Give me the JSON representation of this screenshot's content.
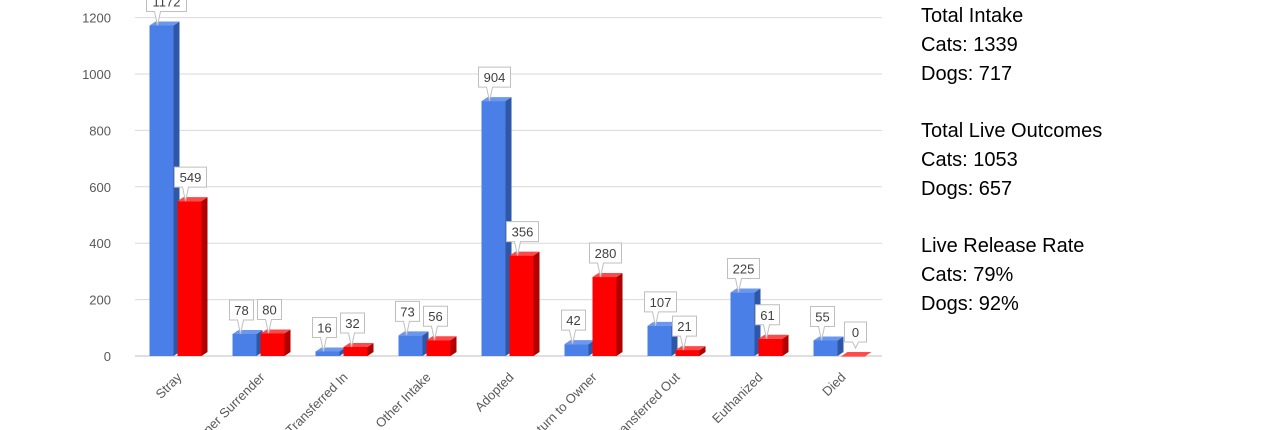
{
  "chart_data": {
    "type": "bar",
    "categories": [
      "Stray",
      "Owner Surrender",
      "Transferred In",
      "Other Intake",
      "Adopted",
      "Return to Owner",
      "Transferred Out",
      "Euthanized",
      "Died"
    ],
    "series": [
      {
        "values": [
          1172,
          78,
          16,
          73,
          904,
          42,
          107,
          225,
          55
        ]
      },
      {
        "values": [
          549,
          80,
          32,
          56,
          356,
          280,
          21,
          61,
          0
        ]
      }
    ],
    "yticks": [
      0,
      200,
      400,
      600,
      800,
      1000,
      1200
    ],
    "ylim": [
      0,
      1200
    ],
    "grid": true,
    "legend": "none",
    "colors": {
      "series0": "#4a7fe8",
      "series0_side": "#2e57a8",
      "series0_top": "#6b98ee",
      "series1": "#ff0000",
      "series1_side": "#b00000",
      "series1_top": "#ff4a4a"
    }
  },
  "stats": {
    "groups": [
      {
        "title": "Total Intake",
        "lines": [
          "Cats: 1339",
          "Dogs: 717"
        ]
      },
      {
        "title": "Total Live Outcomes",
        "lines": [
          "Cats: 1053",
          "Dogs: 657"
        ]
      },
      {
        "title": "Live Release Rate",
        "lines": [
          "Cats: 79%",
          "Dogs: 92%"
        ]
      }
    ]
  }
}
